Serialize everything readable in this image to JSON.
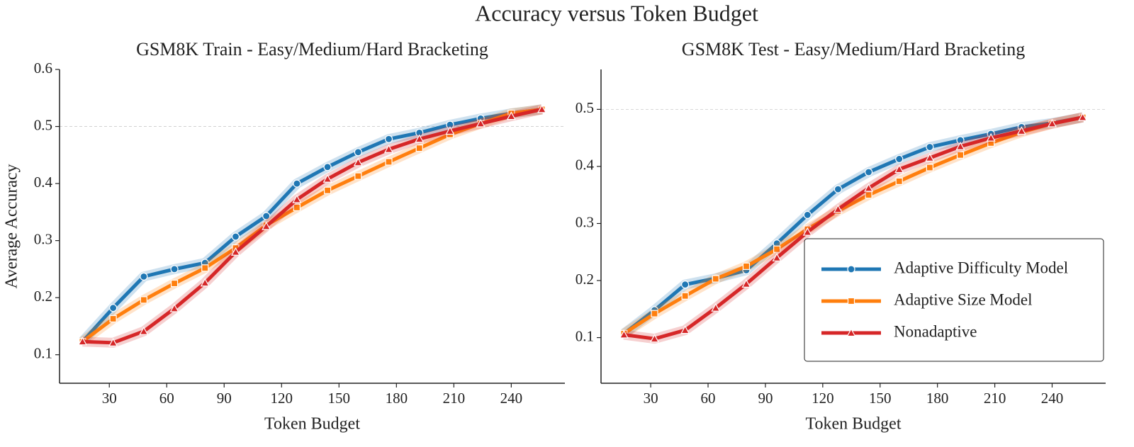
{
  "title": "Accuracy versus Token Budget",
  "chart_data": [
    {
      "type": "line",
      "title": "GSM8K Train - Easy/Medium/Hard Bracketing",
      "xlabel": "Token Budget",
      "ylabel": "Average Accuracy",
      "x": [
        16,
        32,
        48,
        64,
        80,
        96,
        112,
        128,
        144,
        160,
        176,
        192,
        208,
        224,
        240,
        256
      ],
      "xlim": [
        4,
        268
      ],
      "xticks": [
        30,
        60,
        90,
        120,
        150,
        180,
        210,
        240
      ],
      "ylim": [
        0.05,
        0.6
      ],
      "yticks": [
        0.1,
        0.2,
        0.3,
        0.4,
        0.5,
        0.6
      ],
      "hline": 0.5,
      "series": [
        {
          "color": "#1f77b4",
          "marker": "circle",
          "values": [
            0.123,
            0.182,
            0.237,
            0.25,
            0.261,
            0.307,
            0.343,
            0.4,
            0.429,
            0.455,
            0.478,
            0.489,
            0.503,
            0.514,
            0.523,
            0.53
          ]
        },
        {
          "color": "#ff7f0e",
          "marker": "square",
          "values": [
            0.123,
            0.163,
            0.196,
            0.225,
            0.252,
            0.287,
            0.327,
            0.358,
            0.388,
            0.413,
            0.438,
            0.462,
            0.486,
            0.505,
            0.523,
            0.53
          ]
        },
        {
          "color": "#d62728",
          "marker": "triangle",
          "values": [
            0.123,
            0.121,
            0.141,
            0.181,
            0.226,
            0.28,
            0.325,
            0.372,
            0.408,
            0.437,
            0.46,
            0.478,
            0.492,
            0.505,
            0.518,
            0.53
          ]
        }
      ]
    },
    {
      "type": "line",
      "title": "GSM8K Test - Easy/Medium/Hard Bracketing",
      "xlabel": "Token Budget",
      "x": [
        16,
        32,
        48,
        64,
        80,
        96,
        112,
        128,
        144,
        160,
        176,
        192,
        208,
        224,
        240,
        256
      ],
      "xlim": [
        4,
        268
      ],
      "xticks": [
        30,
        60,
        90,
        120,
        150,
        180,
        210,
        240
      ],
      "ylim": [
        0.02,
        0.57
      ],
      "yticks": [
        0.1,
        0.2,
        0.3,
        0.4,
        0.5
      ],
      "hline": 0.5,
      "legend": "lower right",
      "series": [
        {
          "name": "Adaptive Difficulty Model",
          "color": "#1f77b4",
          "marker": "circle",
          "values": [
            0.107,
            0.148,
            0.193,
            0.204,
            0.218,
            0.265,
            0.315,
            0.36,
            0.39,
            0.413,
            0.434,
            0.446,
            0.457,
            0.469,
            0.476,
            0.486
          ]
        },
        {
          "name": "Adaptive Size Model",
          "color": "#ff7f0e",
          "marker": "square",
          "values": [
            0.107,
            0.142,
            0.173,
            0.203,
            0.225,
            0.255,
            0.29,
            0.322,
            0.35,
            0.374,
            0.398,
            0.42,
            0.441,
            0.46,
            0.475,
            0.486
          ]
        },
        {
          "name": "Nonadaptive",
          "color": "#d62728",
          "marker": "triangle",
          "values": [
            0.105,
            0.098,
            0.113,
            0.152,
            0.194,
            0.24,
            0.285,
            0.325,
            0.362,
            0.395,
            0.415,
            0.435,
            0.45,
            0.462,
            0.475,
            0.486
          ]
        }
      ]
    }
  ]
}
